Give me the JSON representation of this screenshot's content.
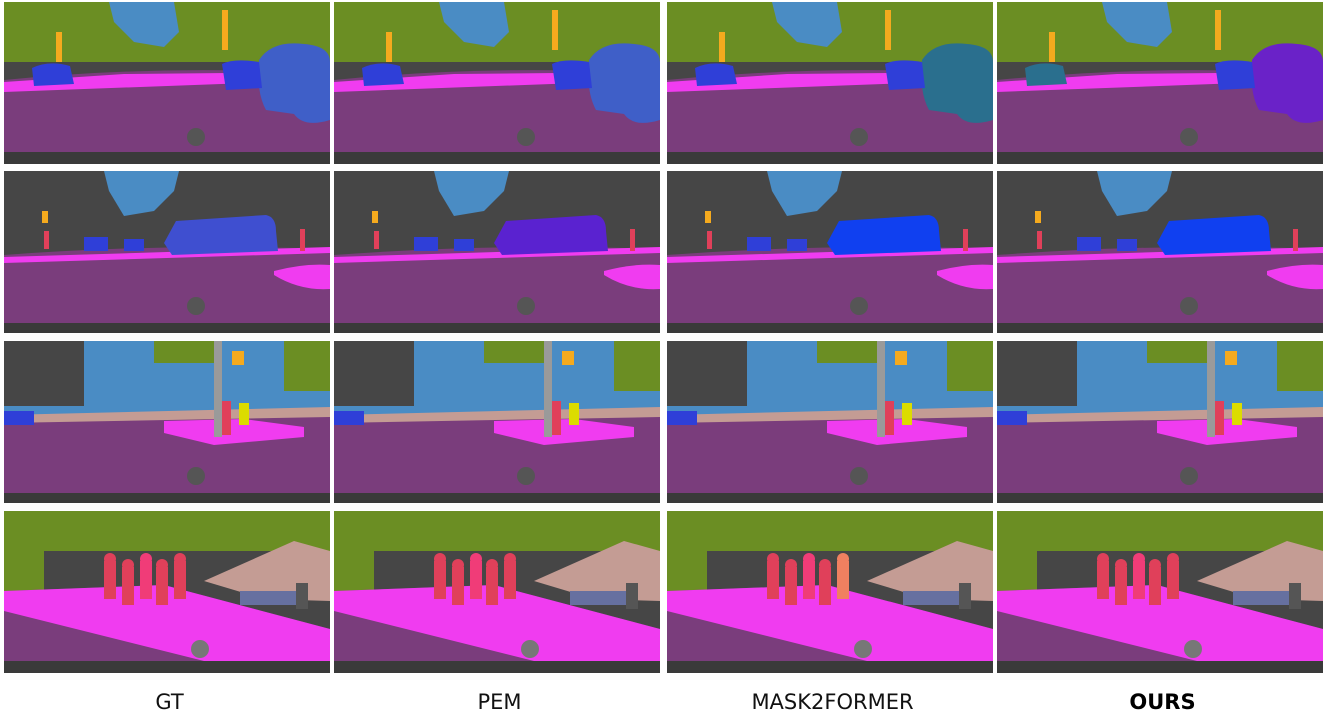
{
  "figure": {
    "columns": [
      {
        "label": "GT",
        "bold": false
      },
      {
        "label": "PEM",
        "bold": false
      },
      {
        "label": "MASK2FORMER",
        "bold": false
      },
      {
        "label": "OURS",
        "bold": true
      }
    ],
    "rows": 4,
    "panel_description_kind": "segmentation-overlay",
    "colors": {
      "road": "#7a3d7c",
      "sidewalk": "#f03cf0",
      "sky": "#4a8cc4",
      "vegetation": "#6b8e23",
      "building": "#464646",
      "car": "#2f3fd8",
      "truck": "#1f37d8",
      "person": "#e0405a",
      "rider": "#f08060",
      "pole": "#9a9a9a",
      "traffic_light": "#f5aa1e",
      "traffic_sign": "#dcdc00",
      "terrain": "#c49c94",
      "wall": "#6670a0",
      "hood": "#2e2e2e"
    }
  }
}
